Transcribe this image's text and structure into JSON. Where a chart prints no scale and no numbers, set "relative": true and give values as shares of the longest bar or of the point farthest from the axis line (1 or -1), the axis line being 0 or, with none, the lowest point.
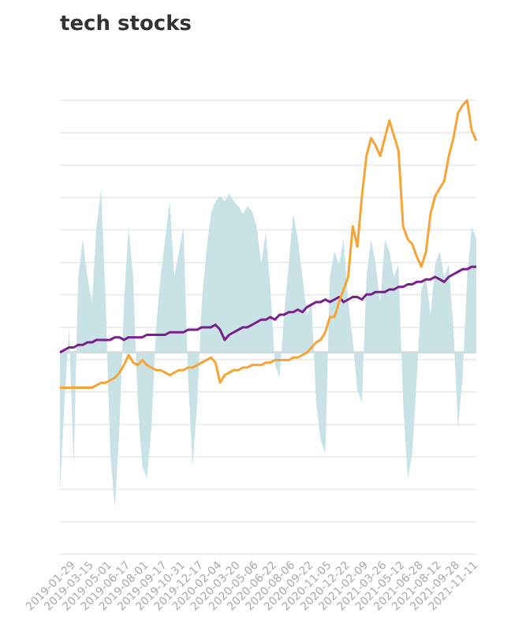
{
  "chart_data": {
    "type": "line",
    "title": "tech stocks",
    "relative": true,
    "grid": "y",
    "marker": "none",
    "categories": [
      null,
      null,
      null,
      "2019-01-29",
      null,
      null,
      null,
      "2019-03-15",
      null,
      null,
      null,
      "2019-05-01",
      null,
      null,
      null,
      "2019-06-17",
      null,
      null,
      null,
      "2019-08-01",
      null,
      null,
      null,
      "2019-09-17",
      null,
      null,
      null,
      "2019-10-31",
      null,
      null,
      null,
      "2019-12-17",
      null,
      null,
      null,
      "2020-02-04",
      null,
      null,
      null,
      "2020-03-20",
      null,
      null,
      null,
      "2020-05-06",
      null,
      null,
      null,
      "2020-06-22",
      null,
      null,
      null,
      "2020-08-06",
      null,
      null,
      null,
      "2020-09-22",
      null,
      null,
      null,
      "2020-11-05",
      null,
      null,
      null,
      "2020-12-22",
      null,
      null,
      null,
      "2021-02-09",
      null,
      null,
      null,
      "2021-03-26",
      null,
      null,
      null,
      "2021-05-12",
      null,
      null,
      null,
      "2021-06-28",
      null,
      null,
      null,
      "2021-08-12",
      null,
      null,
      null,
      "2021-09-28",
      null,
      null,
      null,
      "2021-11-11"
    ],
    "series": [
      {
        "type": "area",
        "color": "#c8e2e6",
        "values": [
          -0.55,
          -0.2,
          0.1,
          -0.45,
          0.3,
          0.45,
          0.3,
          0.2,
          0.5,
          0.65,
          0.2,
          -0.4,
          -0.62,
          -0.3,
          0.2,
          0.5,
          0.3,
          -0.2,
          -0.45,
          -0.5,
          -0.3,
          0.1,
          0.3,
          0.45,
          0.6,
          0.3,
          0.4,
          0.5,
          -0.1,
          -0.45,
          -0.2,
          0.2,
          0.4,
          0.55,
          0.6,
          0.62,
          0.6,
          0.63,
          0.6,
          0.58,
          0.55,
          0.58,
          0.56,
          0.5,
          0.35,
          0.48,
          0.25,
          -0.05,
          -0.1,
          0.15,
          0.35,
          0.55,
          0.45,
          0.3,
          0.15,
          0.2,
          -0.2,
          -0.35,
          -0.4,
          0.3,
          0.4,
          0.35,
          0.45,
          0.2,
          0.05,
          -0.15,
          -0.2,
          0.3,
          0.45,
          0.35,
          0.2,
          0.45,
          0.4,
          0.3,
          0.35,
          -0.2,
          -0.5,
          -0.4,
          -0.1,
          0.25,
          0.3,
          0.15,
          0.35,
          0.4,
          0.3,
          0.35,
          0.1,
          -0.3,
          -0.1,
          0.3,
          0.5,
          0.45
        ]
      },
      {
        "type": "line",
        "color": "#f5a537",
        "values": [
          -0.14,
          -0.14,
          -0.14,
          -0.14,
          -0.14,
          -0.14,
          -0.14,
          -0.14,
          -0.13,
          -0.12,
          -0.12,
          -0.11,
          -0.1,
          -0.08,
          -0.05,
          -0.01,
          -0.04,
          -0.05,
          -0.03,
          -0.05,
          -0.06,
          -0.07,
          -0.07,
          -0.08,
          -0.09,
          -0.08,
          -0.07,
          -0.07,
          -0.06,
          -0.06,
          -0.05,
          -0.04,
          -0.03,
          -0.02,
          -0.04,
          -0.12,
          -0.09,
          -0.08,
          -0.07,
          -0.07,
          -0.06,
          -0.06,
          -0.05,
          -0.05,
          -0.05,
          -0.04,
          -0.04,
          -0.03,
          -0.03,
          -0.03,
          -0.03,
          -0.02,
          -0.02,
          -0.01,
          0.0,
          0.02,
          0.04,
          0.05,
          0.08,
          0.14,
          0.14,
          0.2,
          0.25,
          0.3,
          0.5,
          0.42,
          0.62,
          0.78,
          0.85,
          0.82,
          0.78,
          0.85,
          0.92,
          0.86,
          0.8,
          0.5,
          0.45,
          0.43,
          0.38,
          0.34,
          0.4,
          0.55,
          0.62,
          0.65,
          0.68,
          0.78,
          0.85,
          0.95,
          0.98,
          1.0,
          0.88,
          0.84
        ]
      },
      {
        "type": "line",
        "color": "#7b1f8c",
        "values": [
          0.0,
          0.01,
          0.02,
          0.02,
          0.03,
          0.03,
          0.04,
          0.04,
          0.05,
          0.05,
          0.05,
          0.05,
          0.06,
          0.06,
          0.05,
          0.06,
          0.06,
          0.06,
          0.06,
          0.07,
          0.07,
          0.07,
          0.07,
          0.07,
          0.08,
          0.08,
          0.08,
          0.08,
          0.09,
          0.09,
          0.09,
          0.1,
          0.1,
          0.1,
          0.11,
          0.09,
          0.05,
          0.07,
          0.08,
          0.09,
          0.1,
          0.1,
          0.11,
          0.12,
          0.13,
          0.13,
          0.14,
          0.13,
          0.15,
          0.15,
          0.16,
          0.16,
          0.17,
          0.16,
          0.18,
          0.19,
          0.2,
          0.2,
          0.21,
          0.2,
          0.21,
          0.22,
          0.2,
          0.21,
          0.22,
          0.22,
          0.21,
          0.23,
          0.23,
          0.24,
          0.24,
          0.24,
          0.25,
          0.25,
          0.26,
          0.26,
          0.27,
          0.27,
          0.28,
          0.28,
          0.29,
          0.29,
          0.3,
          0.29,
          0.28,
          0.3,
          0.31,
          0.32,
          0.33,
          0.33,
          0.34,
          0.34
        ]
      }
    ]
  }
}
